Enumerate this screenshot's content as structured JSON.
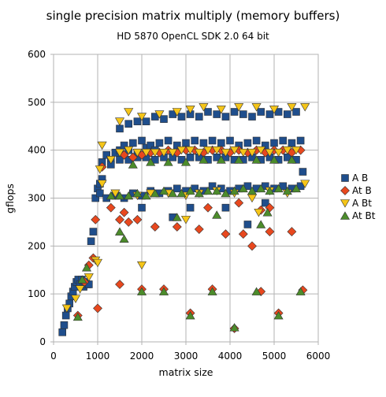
{
  "chart_data": {
    "type": "scatter",
    "title": "single precision matrix multiply (memory buffers)",
    "subtitle": "HD 5870 OpenCL SDK 2.0 64 bit",
    "xlabel": "matrix size",
    "ylabel": "gflops",
    "xlim": [
      0,
      6000
    ],
    "ylim": [
      0,
      600
    ],
    "xticks": [
      0,
      1000,
      2000,
      3000,
      4000,
      5000,
      6000
    ],
    "yticks": [
      0,
      100,
      200,
      300,
      400,
      500,
      600
    ],
    "grid": true,
    "legend_position": "right",
    "series": [
      {
        "name": "A B",
        "marker": "square",
        "color": "#1f4e8c",
        "points": [
          [
            200,
            20
          ],
          [
            240,
            35
          ],
          [
            280,
            55
          ],
          [
            320,
            70
          ],
          [
            360,
            80
          ],
          [
            400,
            95
          ],
          [
            440,
            105
          ],
          [
            480,
            115
          ],
          [
            520,
            125
          ],
          [
            560,
            130
          ],
          [
            600,
            120
          ],
          [
            640,
            130
          ],
          [
            680,
            115
          ],
          [
            720,
            125
          ],
          [
            760,
            120
          ],
          [
            800,
            120
          ],
          [
            850,
            210
          ],
          [
            900,
            230
          ],
          [
            950,
            300
          ],
          [
            1000,
            320
          ],
          [
            1050,
            330
          ],
          [
            1100,
            340
          ],
          [
            1200,
            390
          ],
          [
            1300,
            380
          ],
          [
            1400,
            395
          ],
          [
            1500,
            400
          ],
          [
            1600,
            410
          ],
          [
            1700,
            400
          ],
          [
            1800,
            415
          ],
          [
            1900,
            395
          ],
          [
            2000,
            420
          ],
          [
            2100,
            405
          ],
          [
            2200,
            410
          ],
          [
            2300,
            400
          ],
          [
            2400,
            415
          ],
          [
            2600,
            420
          ],
          [
            2800,
            410
          ],
          [
            3000,
            415
          ],
          [
            3200,
            420
          ],
          [
            3400,
            415
          ],
          [
            3600,
            420
          ],
          [
            3800,
            415
          ],
          [
            4000,
            420
          ],
          [
            4200,
            410
          ],
          [
            4400,
            415
          ],
          [
            4600,
            420
          ],
          [
            4800,
            410
          ],
          [
            5000,
            415
          ],
          [
            5200,
            420
          ],
          [
            5400,
            415
          ],
          [
            5600,
            420
          ],
          [
            1050,
            310
          ],
          [
            1200,
            300
          ],
          [
            1400,
            305
          ],
          [
            1600,
            300
          ],
          [
            1800,
            310
          ],
          [
            2000,
            305
          ],
          [
            2200,
            315
          ],
          [
            2400,
            310
          ],
          [
            2600,
            315
          ],
          [
            2800,
            320
          ],
          [
            3000,
            315
          ],
          [
            3200,
            320
          ],
          [
            3400,
            315
          ],
          [
            3600,
            325
          ],
          [
            3800,
            320
          ],
          [
            4000,
            315
          ],
          [
            4200,
            320
          ],
          [
            4400,
            325
          ],
          [
            4600,
            320
          ],
          [
            4800,
            325
          ],
          [
            5000,
            320
          ],
          [
            5200,
            325
          ],
          [
            5400,
            320
          ],
          [
            5600,
            325
          ],
          [
            1500,
            445
          ],
          [
            1700,
            455
          ],
          [
            1900,
            460
          ],
          [
            2100,
            460
          ],
          [
            2300,
            470
          ],
          [
            2500,
            465
          ],
          [
            2700,
            475
          ],
          [
            2900,
            470
          ],
          [
            3100,
            475
          ],
          [
            3300,
            470
          ],
          [
            3500,
            480
          ],
          [
            3700,
            475
          ],
          [
            3900,
            470
          ],
          [
            4100,
            480
          ],
          [
            4300,
            475
          ],
          [
            4500,
            470
          ],
          [
            4700,
            480
          ],
          [
            4900,
            475
          ],
          [
            5100,
            480
          ],
          [
            5300,
            475
          ],
          [
            5500,
            480
          ],
          [
            1100,
            375
          ],
          [
            1300,
            370
          ],
          [
            1500,
            380
          ],
          [
            1700,
            380
          ],
          [
            1900,
            385
          ],
          [
            2100,
            385
          ],
          [
            2300,
            380
          ],
          [
            2500,
            385
          ],
          [
            2700,
            385
          ],
          [
            2900,
            380
          ],
          [
            3100,
            385
          ],
          [
            3300,
            385
          ],
          [
            3500,
            380
          ],
          [
            3700,
            385
          ],
          [
            3900,
            385
          ],
          [
            4100,
            380
          ],
          [
            4300,
            380
          ],
          [
            4500,
            385
          ],
          [
            4700,
            380
          ],
          [
            4900,
            385
          ],
          [
            5100,
            380
          ],
          [
            5300,
            385
          ],
          [
            5500,
            380
          ],
          [
            2000,
            280
          ],
          [
            2700,
            260
          ],
          [
            3100,
            280
          ],
          [
            3900,
            280
          ],
          [
            4400,
            245
          ],
          [
            4800,
            290
          ],
          [
            5650,
            355
          ]
        ]
      },
      {
        "name": "At B",
        "marker": "diamond",
        "color": "#e8481e",
        "points": [
          [
            550,
            55
          ],
          [
            700,
            125
          ],
          [
            800,
            160
          ],
          [
            900,
            175
          ],
          [
            950,
            255
          ],
          [
            1000,
            70
          ],
          [
            1100,
            365
          ],
          [
            1300,
            280
          ],
          [
            1500,
            120
          ],
          [
            1600,
            270
          ],
          [
            1700,
            250
          ],
          [
            2000,
            110
          ],
          [
            2300,
            240
          ],
          [
            2500,
            110
          ],
          [
            2800,
            240
          ],
          [
            3100,
            60
          ],
          [
            3300,
            235
          ],
          [
            3600,
            110
          ],
          [
            3900,
            225
          ],
          [
            4100,
            28
          ],
          [
            4300,
            225
          ],
          [
            4500,
            200
          ],
          [
            4700,
            105
          ],
          [
            4900,
            230
          ],
          [
            5100,
            60
          ],
          [
            5400,
            230
          ],
          [
            5650,
            108
          ],
          [
            1600,
            390
          ],
          [
            1800,
            385
          ],
          [
            2000,
            390
          ],
          [
            2200,
            395
          ],
          [
            2400,
            395
          ],
          [
            2600,
            400
          ],
          [
            2800,
            395
          ],
          [
            3000,
            400
          ],
          [
            3200,
            400
          ],
          [
            3400,
            395
          ],
          [
            3600,
            400
          ],
          [
            3800,
            400
          ],
          [
            4000,
            395
          ],
          [
            4200,
            400
          ],
          [
            4400,
            395
          ],
          [
            4600,
            400
          ],
          [
            4800,
            395
          ],
          [
            5000,
            400
          ],
          [
            5200,
            400
          ],
          [
            5400,
            395
          ],
          [
            5600,
            400
          ],
          [
            1500,
            255
          ],
          [
            1900,
            255
          ],
          [
            3500,
            280
          ],
          [
            4200,
            290
          ],
          [
            4700,
            275
          ],
          [
            4900,
            280
          ]
        ]
      },
      {
        "name": "A Bt",
        "marker": "triangle-down",
        "color": "#f5c518",
        "points": [
          [
            300,
            70
          ],
          [
            500,
            90
          ],
          [
            600,
            110
          ],
          [
            800,
            135
          ],
          [
            950,
            170
          ],
          [
            1000,
            165
          ],
          [
            1050,
            360
          ],
          [
            1100,
            410
          ],
          [
            1300,
            380
          ],
          [
            1500,
            395
          ],
          [
            1700,
            400
          ],
          [
            1900,
            395
          ],
          [
            2000,
            160
          ],
          [
            2100,
            395
          ],
          [
            2300,
            395
          ],
          [
            2500,
            395
          ],
          [
            2700,
            395
          ],
          [
            2900,
            400
          ],
          [
            3100,
            400
          ],
          [
            3300,
            395
          ],
          [
            3500,
            400
          ],
          [
            3700,
            400
          ],
          [
            3900,
            395
          ],
          [
            4100,
            400
          ],
          [
            4300,
            395
          ],
          [
            4500,
            395
          ],
          [
            4700,
            400
          ],
          [
            4900,
            395
          ],
          [
            5100,
            395
          ],
          [
            5300,
            400
          ],
          [
            5500,
            400
          ],
          [
            1500,
            460
          ],
          [
            1700,
            480
          ],
          [
            2000,
            470
          ],
          [
            2400,
            475
          ],
          [
            2800,
            480
          ],
          [
            3100,
            485
          ],
          [
            3400,
            490
          ],
          [
            3800,
            485
          ],
          [
            4200,
            490
          ],
          [
            4600,
            490
          ],
          [
            5000,
            485
          ],
          [
            5400,
            490
          ],
          [
            5700,
            490
          ],
          [
            1100,
            330
          ],
          [
            1400,
            310
          ],
          [
            1900,
            305
          ],
          [
            2200,
            310
          ],
          [
            2600,
            310
          ],
          [
            3000,
            305
          ],
          [
            3300,
            310
          ],
          [
            3700,
            315
          ],
          [
            4100,
            310
          ],
          [
            4500,
            300
          ],
          [
            4900,
            315
          ],
          [
            5300,
            310
          ],
          [
            5700,
            330
          ],
          [
            3000,
            255
          ],
          [
            4650,
            270
          ]
        ]
      },
      {
        "name": "At Bt",
        "marker": "triangle-up",
        "color": "#4c8c2b",
        "points": [
          [
            550,
            52
          ],
          [
            650,
            130
          ],
          [
            750,
            155
          ],
          [
            1500,
            230
          ],
          [
            1600,
            215
          ],
          [
            2000,
            105
          ],
          [
            2500,
            105
          ],
          [
            2800,
            260
          ],
          [
            3100,
            55
          ],
          [
            3600,
            105
          ],
          [
            3700,
            265
          ],
          [
            4100,
            30
          ],
          [
            4600,
            105
          ],
          [
            4700,
            245
          ],
          [
            4850,
            270
          ],
          [
            5100,
            55
          ],
          [
            5600,
            105
          ],
          [
            1300,
            305
          ],
          [
            1500,
            305
          ],
          [
            1700,
            305
          ],
          [
            1900,
            310
          ],
          [
            2100,
            305
          ],
          [
            2300,
            310
          ],
          [
            2500,
            315
          ],
          [
            2700,
            310
          ],
          [
            2900,
            310
          ],
          [
            3100,
            315
          ],
          [
            3300,
            310
          ],
          [
            3500,
            315
          ],
          [
            3700,
            315
          ],
          [
            3900,
            310
          ],
          [
            4100,
            315
          ],
          [
            4300,
            320
          ],
          [
            4500,
            315
          ],
          [
            4700,
            320
          ],
          [
            4900,
            315
          ],
          [
            5100,
            320
          ],
          [
            5300,
            315
          ],
          [
            5500,
            320
          ],
          [
            1800,
            370
          ],
          [
            2200,
            375
          ],
          [
            2600,
            375
          ],
          [
            3000,
            375
          ],
          [
            3400,
            380
          ],
          [
            3800,
            380
          ],
          [
            4200,
            380
          ],
          [
            4600,
            380
          ],
          [
            5000,
            380
          ],
          [
            5400,
            380
          ]
        ]
      }
    ]
  }
}
